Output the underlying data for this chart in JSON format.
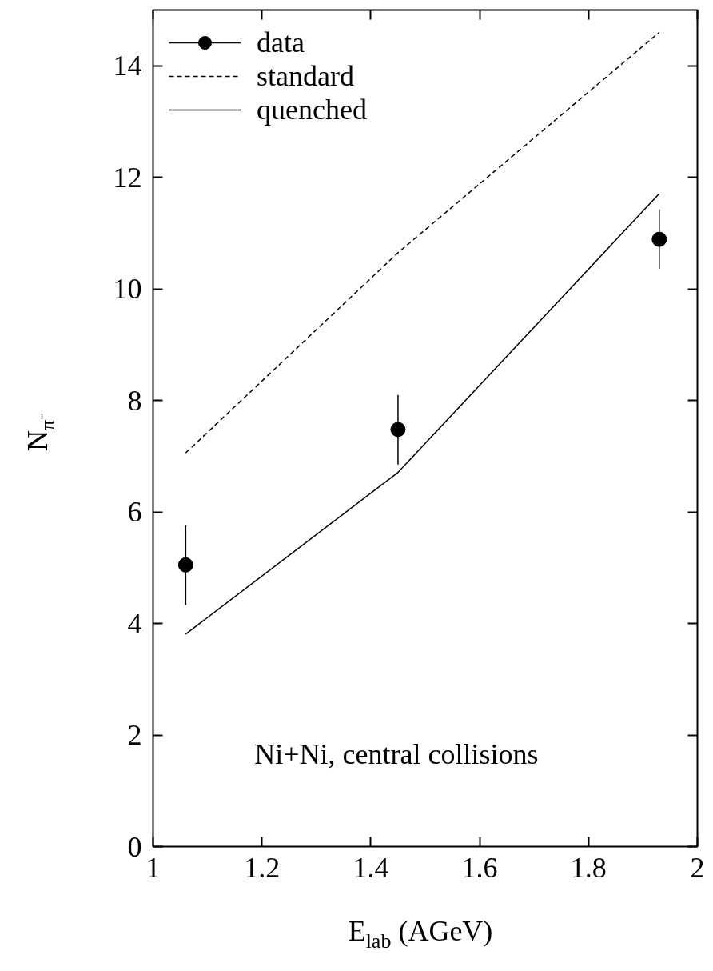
{
  "chart_data": {
    "type": "line",
    "xlabel": "E$_{lab}$ (AGeV)",
    "ylabel": "N$_{π⁻}$",
    "annotations": [
      "Ni+Ni, central collisions"
    ],
    "xlim": [
      1,
      2
    ],
    "xticks": [
      1,
      1.2,
      1.4,
      1.6,
      1.8,
      2
    ],
    "ylim": [
      0,
      15
    ],
    "yticks": [
      0,
      2,
      4,
      6,
      8,
      10,
      12,
      14
    ],
    "grid": false,
    "legend": "top left",
    "series": [
      {
        "name": "data",
        "type": "scatter",
        "marker": "circle",
        "color": "#000000",
        "x": [
          1.06,
          1.45,
          1.93
        ],
        "values": [
          5.05,
          7.48,
          10.89
        ],
        "errors": [
          [
            4.33,
            5.76
          ],
          [
            6.85,
            8.1
          ],
          [
            10.36,
            11.43
          ]
        ]
      },
      {
        "name": "standard",
        "line_style": "dashed",
        "color": "#000000",
        "x": [
          1.06,
          1.45,
          1.93
        ],
        "values": [
          7.06,
          10.65,
          14.6
        ]
      },
      {
        "name": "quenched",
        "line_style": "solid",
        "color": "#000000",
        "x": [
          1.06,
          1.45,
          1.93
        ],
        "values": [
          3.81,
          6.71,
          11.71
        ]
      }
    ]
  }
}
